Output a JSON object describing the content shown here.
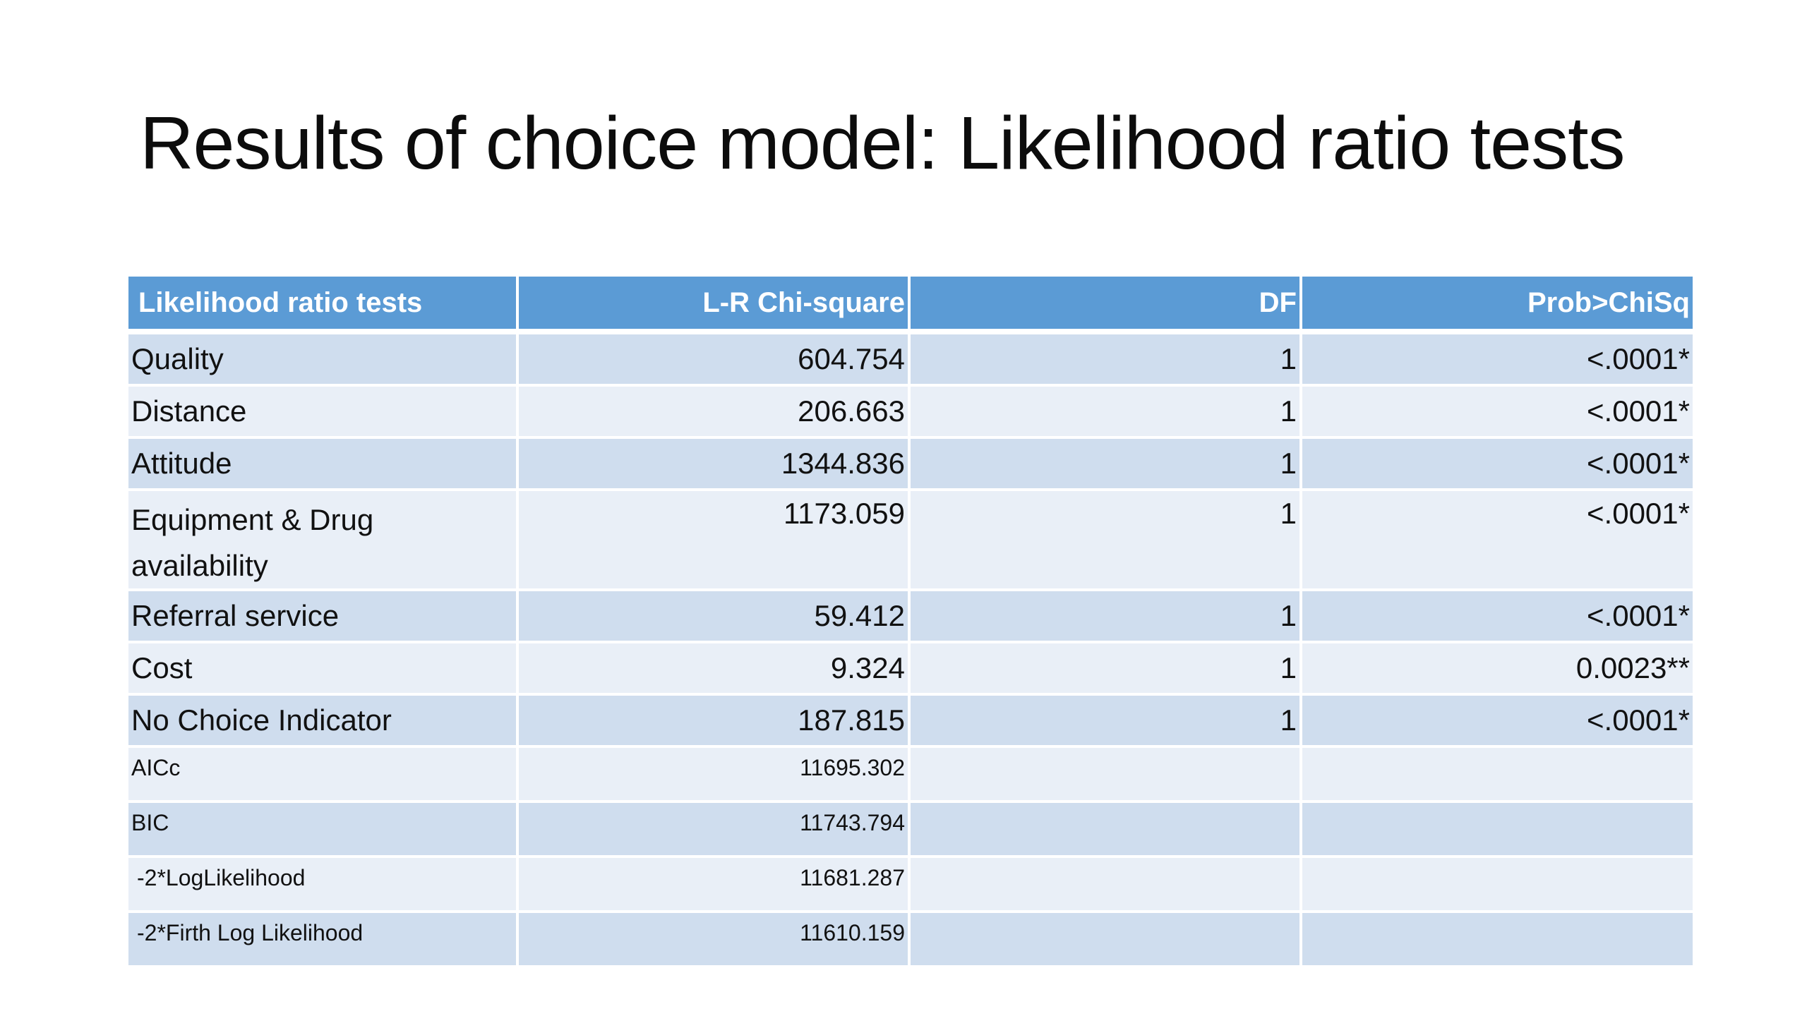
{
  "slide": {
    "title": "Results of choice model: Likelihood ratio tests"
  },
  "table": {
    "headers": [
      "Likelihood ratio tests",
      "L-R Chi-square",
      "DF",
      "Prob>ChiSq"
    ],
    "rows": [
      {
        "term": "Quality",
        "chi_square": "604.754",
        "df": "1",
        "prob": "<.0001*"
      },
      {
        "term": "Distance",
        "chi_square": "206.663",
        "df": "1",
        "prob": "<.0001*"
      },
      {
        "term": "Attitude",
        "chi_square": "1344.836",
        "df": "1",
        "prob": "<.0001*"
      },
      {
        "term": "Equipment & Drug availability",
        "chi_square": "1173.059",
        "df": "1",
        "prob": "<.0001*"
      },
      {
        "term": "Referral service",
        "chi_square": "59.412",
        "df": "1",
        "prob": "<.0001*"
      },
      {
        "term": "Cost",
        "chi_square": "9.324",
        "df": "1",
        "prob": "0.0023**"
      },
      {
        "term": "No Choice Indicator",
        "chi_square": "187.815",
        "df": "1",
        "prob": "<.0001*"
      }
    ],
    "fit_stats": [
      {
        "term": "AICc",
        "value": "11695.302"
      },
      {
        "term": "BIC",
        "value": "11743.794"
      },
      {
        "term": "-2*LogLikelihood",
        "value": "11681.287"
      },
      {
        "term": "-2*Firth Log Likelihood",
        "value": "11610.159"
      }
    ]
  },
  "colors": {
    "header_bg": "#5b9bd5",
    "row_dark": "#cfddee",
    "row_light": "#e9eff7"
  }
}
